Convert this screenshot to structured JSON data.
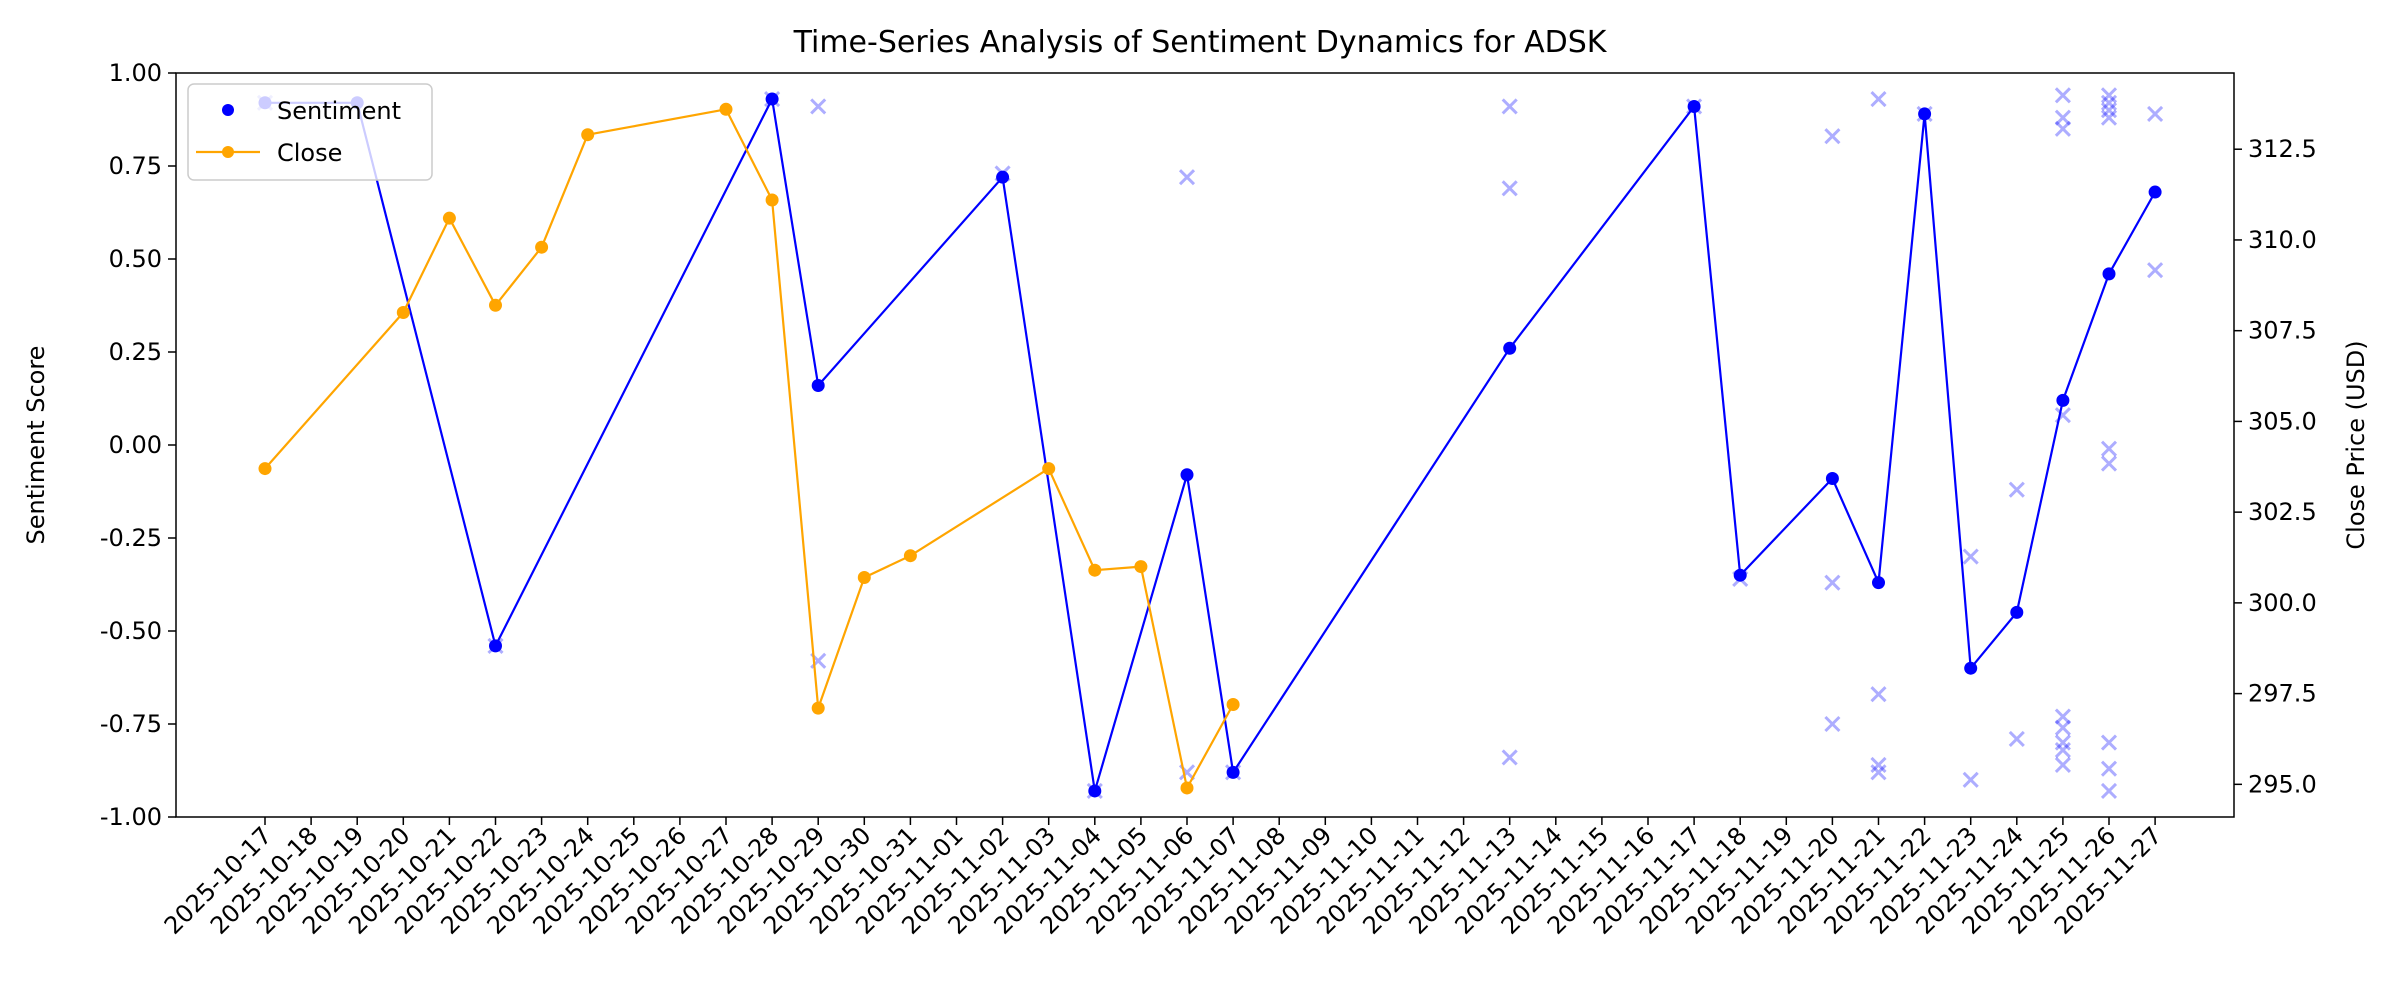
{
  "chart_data": {
    "type": "line",
    "title": "Time-Series Analysis of Sentiment Dynamics for ADSK",
    "xlabel": "",
    "ylabel": "Sentiment Score",
    "y2label": "Close Price (USD)",
    "ylim": [
      -1.0,
      1.0
    ],
    "y2lim": [
      294.1,
      314.6
    ],
    "yticks": [
      -1.0,
      -0.75,
      -0.5,
      -0.25,
      0.0,
      0.25,
      0.5,
      0.75,
      1.0
    ],
    "y2ticks": [
      295.0,
      297.5,
      300.0,
      302.5,
      305.0,
      307.5,
      310.0,
      312.5
    ],
    "grid": false,
    "legend_position": "top-left",
    "x_ticks": [
      "2025-10-17",
      "2025-10-18",
      "2025-10-19",
      "2025-10-20",
      "2025-10-21",
      "2025-10-22",
      "2025-10-23",
      "2025-10-24",
      "2025-10-25",
      "2025-10-26",
      "2025-10-27",
      "2025-10-28",
      "2025-10-29",
      "2025-10-30",
      "2025-10-31",
      "2025-11-01",
      "2025-11-02",
      "2025-11-03",
      "2025-11-04",
      "2025-11-05",
      "2025-11-06",
      "2025-11-07",
      "2025-11-08",
      "2025-11-09",
      "2025-11-10",
      "2025-11-11",
      "2025-11-12",
      "2025-11-13",
      "2025-11-14",
      "2025-11-15",
      "2025-11-16",
      "2025-11-17",
      "2025-11-18",
      "2025-11-19",
      "2025-11-20",
      "2025-11-21",
      "2025-11-22",
      "2025-11-23",
      "2025-11-24",
      "2025-11-25",
      "2025-11-26",
      "2025-11-27"
    ],
    "series": [
      {
        "name": "Sentiment",
        "color": "#0000ff",
        "axis": "left",
        "style": "line-dot",
        "points": [
          [
            "2025-10-17",
            0.92
          ],
          [
            "2025-10-19",
            0.92
          ],
          [
            "2025-10-22",
            -0.54
          ],
          [
            "2025-10-28",
            0.93
          ],
          [
            "2025-10-29",
            0.16
          ],
          [
            "2025-11-02",
            0.72
          ],
          [
            "2025-11-04",
            -0.93
          ],
          [
            "2025-11-06",
            -0.08
          ],
          [
            "2025-11-07",
            -0.88
          ],
          [
            "2025-11-13",
            0.26
          ],
          [
            "2025-11-17",
            0.91
          ],
          [
            "2025-11-18",
            -0.35
          ],
          [
            "2025-11-20",
            -0.09
          ],
          [
            "2025-11-21",
            -0.37
          ],
          [
            "2025-11-22",
            0.89
          ],
          [
            "2025-11-23",
            -0.6
          ],
          [
            "2025-11-24",
            -0.45
          ],
          [
            "2025-11-25",
            0.12
          ],
          [
            "2025-11-26",
            0.46
          ],
          [
            "2025-11-27",
            0.68
          ]
        ]
      },
      {
        "name": "Close",
        "color": "#ffa500",
        "axis": "right",
        "style": "line-dot",
        "points": [
          [
            "2025-10-17",
            303.7
          ],
          [
            "2025-10-20",
            308.0
          ],
          [
            "2025-10-21",
            310.6
          ],
          [
            "2025-10-22",
            308.2
          ],
          [
            "2025-10-23",
            309.8
          ],
          [
            "2025-10-24",
            312.9
          ],
          [
            "2025-10-27",
            313.6
          ],
          [
            "2025-10-28",
            311.1
          ],
          [
            "2025-10-29",
            297.1
          ],
          [
            "2025-10-30",
            300.7
          ],
          [
            "2025-10-31",
            301.3
          ],
          [
            "2025-11-03",
            303.7
          ],
          [
            "2025-11-04",
            300.9
          ],
          [
            "2025-11-05",
            301.0
          ],
          [
            "2025-11-06",
            294.9
          ],
          [
            "2025-11-07",
            297.2
          ]
        ]
      },
      {
        "name": "",
        "color": "#0000ff",
        "axis": "left",
        "style": "x-marker-faded",
        "points": [
          [
            "2025-10-17",
            0.92
          ],
          [
            "2025-10-22",
            -0.54
          ],
          [
            "2025-10-28",
            0.93
          ],
          [
            "2025-10-29",
            0.91
          ],
          [
            "2025-10-29",
            -0.58
          ],
          [
            "2025-11-02",
            0.73
          ],
          [
            "2025-11-04",
            -0.93
          ],
          [
            "2025-11-06",
            0.72
          ],
          [
            "2025-11-06",
            -0.88
          ],
          [
            "2025-11-07",
            -0.88
          ],
          [
            "2025-11-13",
            0.91
          ],
          [
            "2025-11-13",
            0.69
          ],
          [
            "2025-11-13",
            -0.84
          ],
          [
            "2025-11-17",
            0.91
          ],
          [
            "2025-11-18",
            -0.36
          ],
          [
            "2025-11-20",
            0.83
          ],
          [
            "2025-11-20",
            -0.37
          ],
          [
            "2025-11-20",
            -0.75
          ],
          [
            "2025-11-21",
            0.93
          ],
          [
            "2025-11-21",
            -0.67
          ],
          [
            "2025-11-21",
            -0.86
          ],
          [
            "2025-11-21",
            -0.88
          ],
          [
            "2025-11-22",
            0.89
          ],
          [
            "2025-11-23",
            -0.3
          ],
          [
            "2025-11-23",
            -0.9
          ],
          [
            "2025-11-24",
            -0.12
          ],
          [
            "2025-11-24",
            -0.79
          ],
          [
            "2025-11-25",
            0.94
          ],
          [
            "2025-11-25",
            0.88
          ],
          [
            "2025-11-25",
            0.85
          ],
          [
            "2025-11-25",
            0.08
          ],
          [
            "2025-11-25",
            -0.73
          ],
          [
            "2025-11-25",
            -0.76
          ],
          [
            "2025-11-25",
            -0.8
          ],
          [
            "2025-11-25",
            -0.82
          ],
          [
            "2025-11-25",
            -0.86
          ],
          [
            "2025-11-26",
            0.94
          ],
          [
            "2025-11-26",
            0.92
          ],
          [
            "2025-11-26",
            0.9
          ],
          [
            "2025-11-26",
            0.88
          ],
          [
            "2025-11-26",
            -0.01
          ],
          [
            "2025-11-26",
            -0.05
          ],
          [
            "2025-11-26",
            -0.8
          ],
          [
            "2025-11-26",
            -0.87
          ],
          [
            "2025-11-26",
            -0.93
          ],
          [
            "2025-11-27",
            0.89
          ],
          [
            "2025-11-27",
            0.47
          ]
        ]
      }
    ]
  }
}
